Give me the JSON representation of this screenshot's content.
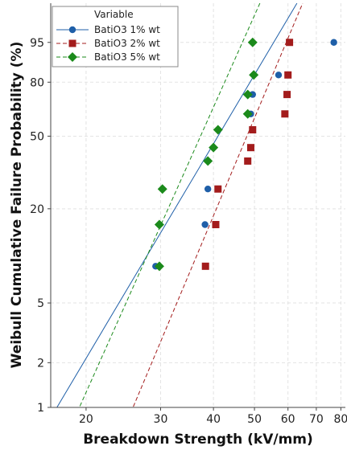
{
  "chart_data": {
    "type": "scatter",
    "title": "",
    "xlabel": "Breakdown Strength (kV/mm)",
    "ylabel": "Weibull Cumulative Failure Probability (%)",
    "x_scale": "log",
    "y_scale": "weibull",
    "xlim": [
      16.5,
      82
    ],
    "ylim_percent": [
      1,
      99.6
    ],
    "x_ticks": [
      20,
      30,
      40,
      50,
      60,
      70,
      80
    ],
    "y_ticks": [
      1,
      2,
      5,
      20,
      50,
      80,
      95
    ],
    "grid": true,
    "legend": {
      "title": "Variable",
      "placement": "top-left"
    },
    "series": [
      {
        "name": "BatiO3 1% wt",
        "color": "#1f5fa8",
        "marker": "circle",
        "line_style": "solid",
        "points": [
          {
            "x": 29.2,
            "y": 8.7
          },
          {
            "x": 38.2,
            "y": 16.0
          },
          {
            "x": 38.8,
            "y": 26.2
          },
          {
            "x": 49.0,
            "y": 62.5
          },
          {
            "x": 49.5,
            "y": 73.5
          },
          {
            "x": 57.0,
            "y": 83.5
          },
          {
            "x": 77.0,
            "y": 95.0
          }
        ],
        "fit_line": [
          {
            "x": 16.5,
            "y": 0.85
          },
          {
            "x": 63.0,
            "y": 99.6
          }
        ]
      },
      {
        "name": "BatiO3 2% wt",
        "color": "#a31c1c",
        "marker": "square",
        "line_style": "dashed",
        "points": [
          {
            "x": 38.3,
            "y": 8.7
          },
          {
            "x": 40.5,
            "y": 16.0
          },
          {
            "x": 41.0,
            "y": 26.2
          },
          {
            "x": 48.2,
            "y": 37.5
          },
          {
            "x": 49.0,
            "y": 44.0
          },
          {
            "x": 49.5,
            "y": 53.5
          },
          {
            "x": 59.0,
            "y": 62.5
          },
          {
            "x": 59.7,
            "y": 73.5
          },
          {
            "x": 60.0,
            "y": 83.5
          },
          {
            "x": 60.5,
            "y": 95.0
          }
        ],
        "fit_line": [
          {
            "x": 24.5,
            "y": 0.7
          },
          {
            "x": 65.0,
            "y": 99.6
          }
        ]
      },
      {
        "name": "BatiO3 5% wt",
        "color": "#1b8a1b",
        "marker": "diamond",
        "line_style": "dashed",
        "points": [
          {
            "x": 29.8,
            "y": 8.7
          },
          {
            "x": 29.8,
            "y": 16.0
          },
          {
            "x": 30.3,
            "y": 26.2
          },
          {
            "x": 38.8,
            "y": 37.5
          },
          {
            "x": 40.0,
            "y": 44.0
          },
          {
            "x": 41.0,
            "y": 53.5
          },
          {
            "x": 48.2,
            "y": 62.5
          },
          {
            "x": 48.2,
            "y": 73.5
          },
          {
            "x": 49.8,
            "y": 83.5
          },
          {
            "x": 49.5,
            "y": 95.0
          }
        ],
        "fit_line": [
          {
            "x": 18.8,
            "y": 0.85
          },
          {
            "x": 51.5,
            "y": 99.6
          }
        ]
      }
    ]
  }
}
